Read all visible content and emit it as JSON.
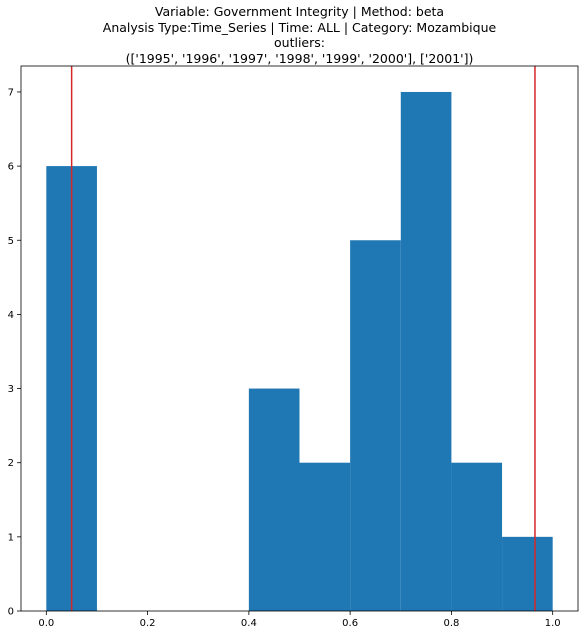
{
  "chart_data": {
    "type": "bar",
    "title_lines": [
      "Variable: Government Integrity | Method: beta",
      "Analysis Type:Time_Series | Time: ALL | Category: Mozambique",
      "outliers:",
      "(['1995', '1996', '1997', '1998', '1999', '2000'], ['2001'])"
    ],
    "xlabel": "",
    "ylabel": "",
    "xlim": [
      -0.05,
      1.05
    ],
    "ylim": [
      0,
      7.35
    ],
    "xticks": [
      "0.0",
      "0.2",
      "0.4",
      "0.6",
      "0.8",
      "1.0"
    ],
    "yticks": [
      "0",
      "1",
      "2",
      "3",
      "4",
      "5",
      "6",
      "7"
    ],
    "bins": [
      {
        "x0": 0.0,
        "x1": 0.1,
        "count": 6
      },
      {
        "x0": 0.1,
        "x1": 0.2,
        "count": 0
      },
      {
        "x0": 0.2,
        "x1": 0.3,
        "count": 0
      },
      {
        "x0": 0.3,
        "x1": 0.4,
        "count": 0
      },
      {
        "x0": 0.4,
        "x1": 0.5,
        "count": 3
      },
      {
        "x0": 0.5,
        "x1": 0.6,
        "count": 2
      },
      {
        "x0": 0.6,
        "x1": 0.7,
        "count": 5
      },
      {
        "x0": 0.7,
        "x1": 0.8,
        "count": 7
      },
      {
        "x0": 0.8,
        "x1": 0.9,
        "count": 2
      },
      {
        "x0": 0.9,
        "x1": 1.0,
        "count": 1
      }
    ],
    "vlines": [
      0.05,
      0.965
    ],
    "bar_color": "#1f77b4",
    "vline_color": "#d62728",
    "grid": false
  }
}
